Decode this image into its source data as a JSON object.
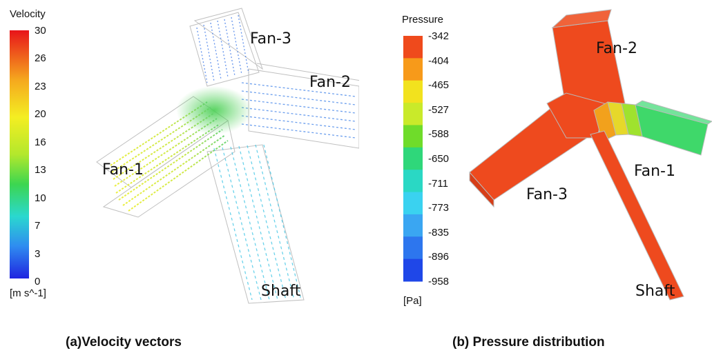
{
  "velocity_panel": {
    "legend_title": "Velocity",
    "unit": "[m s^-1]",
    "ticks": [
      "30",
      "26",
      "23",
      "20",
      "16",
      "13",
      "10",
      "7",
      "3",
      "0"
    ],
    "labels": {
      "fan1": "Fan-1",
      "fan2": "Fan-2",
      "fan3": "Fan-3",
      "shaft": "Shaft"
    },
    "caption": "(a)Velocity vectors"
  },
  "pressure_panel": {
    "legend_title": "Pressure",
    "unit": "[Pa]",
    "ticks": [
      "-342",
      "-404",
      "-465",
      "-527",
      "-588",
      "-650",
      "-711",
      "-773",
      "-835",
      "-896",
      "-958"
    ],
    "band_colors": [
      "#ef4a1c",
      "#f79a1a",
      "#f2e21e",
      "#c9ea2a",
      "#6fdc2a",
      "#2fd77a",
      "#2ad8c4",
      "#3ad2f0",
      "#3aa6f2",
      "#2d76ee",
      "#1f47e8"
    ],
    "labels": {
      "fan1": "Fan-1",
      "fan2": "Fan-2",
      "fan3": "Fan-3",
      "shaft": "Shaft"
    },
    "caption": "(b) Pressure distribution"
  }
}
